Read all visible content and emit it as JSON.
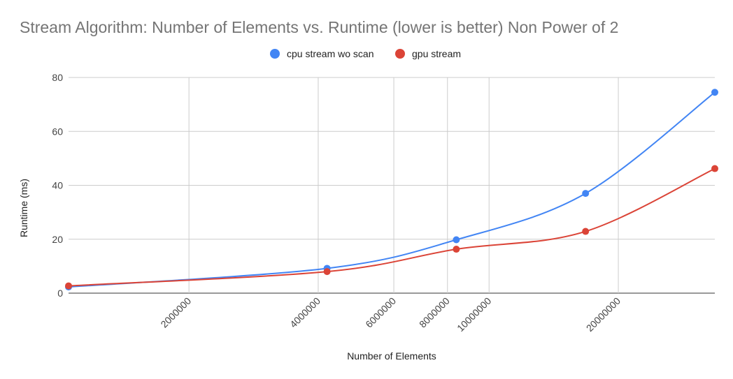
{
  "chart_data": {
    "type": "line",
    "title": "Stream Algorithm: Number of Elements vs. Runtime (lower is better) Non Power of 2",
    "xlabel": "Number of Elements",
    "ylabel": "Runtime (ms)",
    "x_scale": "log",
    "xlim": [
      1048573,
      33554429
    ],
    "ylim": [
      0,
      80
    ],
    "y_ticks": [
      "0",
      "20",
      "40",
      "60",
      "80"
    ],
    "x_ticks": [
      {
        "value": 2000000,
        "label": "2000000"
      },
      {
        "value": 4000000,
        "label": "4000000"
      },
      {
        "value": 6000000,
        "label": "6000000"
      },
      {
        "value": 8000000,
        "label": "8000000"
      },
      {
        "value": 10000000,
        "label": "10000000"
      },
      {
        "value": 20000000,
        "label": "20000000"
      }
    ],
    "grid": true,
    "legend_position": "top",
    "series": [
      {
        "name": "cpu stream wo scan",
        "color": "#4285f4",
        "points": [
          {
            "x": 1048573,
            "y": 2.3
          },
          {
            "x": 4194301,
            "y": 9.2
          },
          {
            "x": 8388605,
            "y": 19.8
          },
          {
            "x": 16777213,
            "y": 37.0
          },
          {
            "x": 33554429,
            "y": 74.5
          }
        ]
      },
      {
        "name": "gpu stream",
        "color": "#db4437",
        "points": [
          {
            "x": 1048573,
            "y": 2.7
          },
          {
            "x": 4194301,
            "y": 8.0
          },
          {
            "x": 8388605,
            "y": 16.3
          },
          {
            "x": 16777213,
            "y": 22.9
          },
          {
            "x": 33554429,
            "y": 46.2
          }
        ]
      }
    ]
  }
}
